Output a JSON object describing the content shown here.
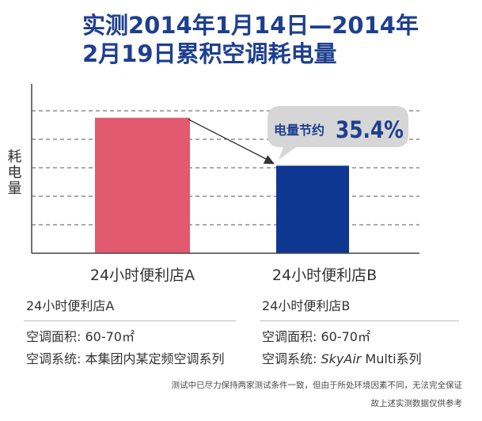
{
  "title": {
    "line1": "实测2014年1月14日—2014年",
    "line2": "2月19日累积空调耗电量"
  },
  "chart_data": {
    "type": "bar",
    "ylabel": "耗电量",
    "categories": [
      "24小时便利店A",
      "24小时便利店B"
    ],
    "values": [
      100,
      64.6
    ],
    "ylim": [
      0,
      125
    ],
    "grid": true,
    "grid_style": "dashed",
    "bar_colors": [
      "#e25a6e",
      "#0e3791"
    ],
    "axis_color": "#444444",
    "annotation": {
      "label": "电量节约",
      "value": "35.4%",
      "bubble_color": "#d6d6d6",
      "text_color": "#1d3f8f"
    }
  },
  "store_a": {
    "header": "24小时便利店A",
    "area": "空调面积: 60-70㎡",
    "system_label": "空调系统: ",
    "system_value": "本集团内某定频空调系列"
  },
  "store_b": {
    "header": "24小时便利店B",
    "area": "空调面积: 60-70㎡",
    "system_label": "空调系统: ",
    "system_brand": "SkyAir",
    "system_value": " Multi系列"
  },
  "footnote": {
    "line1": "测试中已尽力保持两家测试条件一致，但由于所处环境因素不同，无法完全保证",
    "line2": "故上述实测数据仅供参考"
  }
}
